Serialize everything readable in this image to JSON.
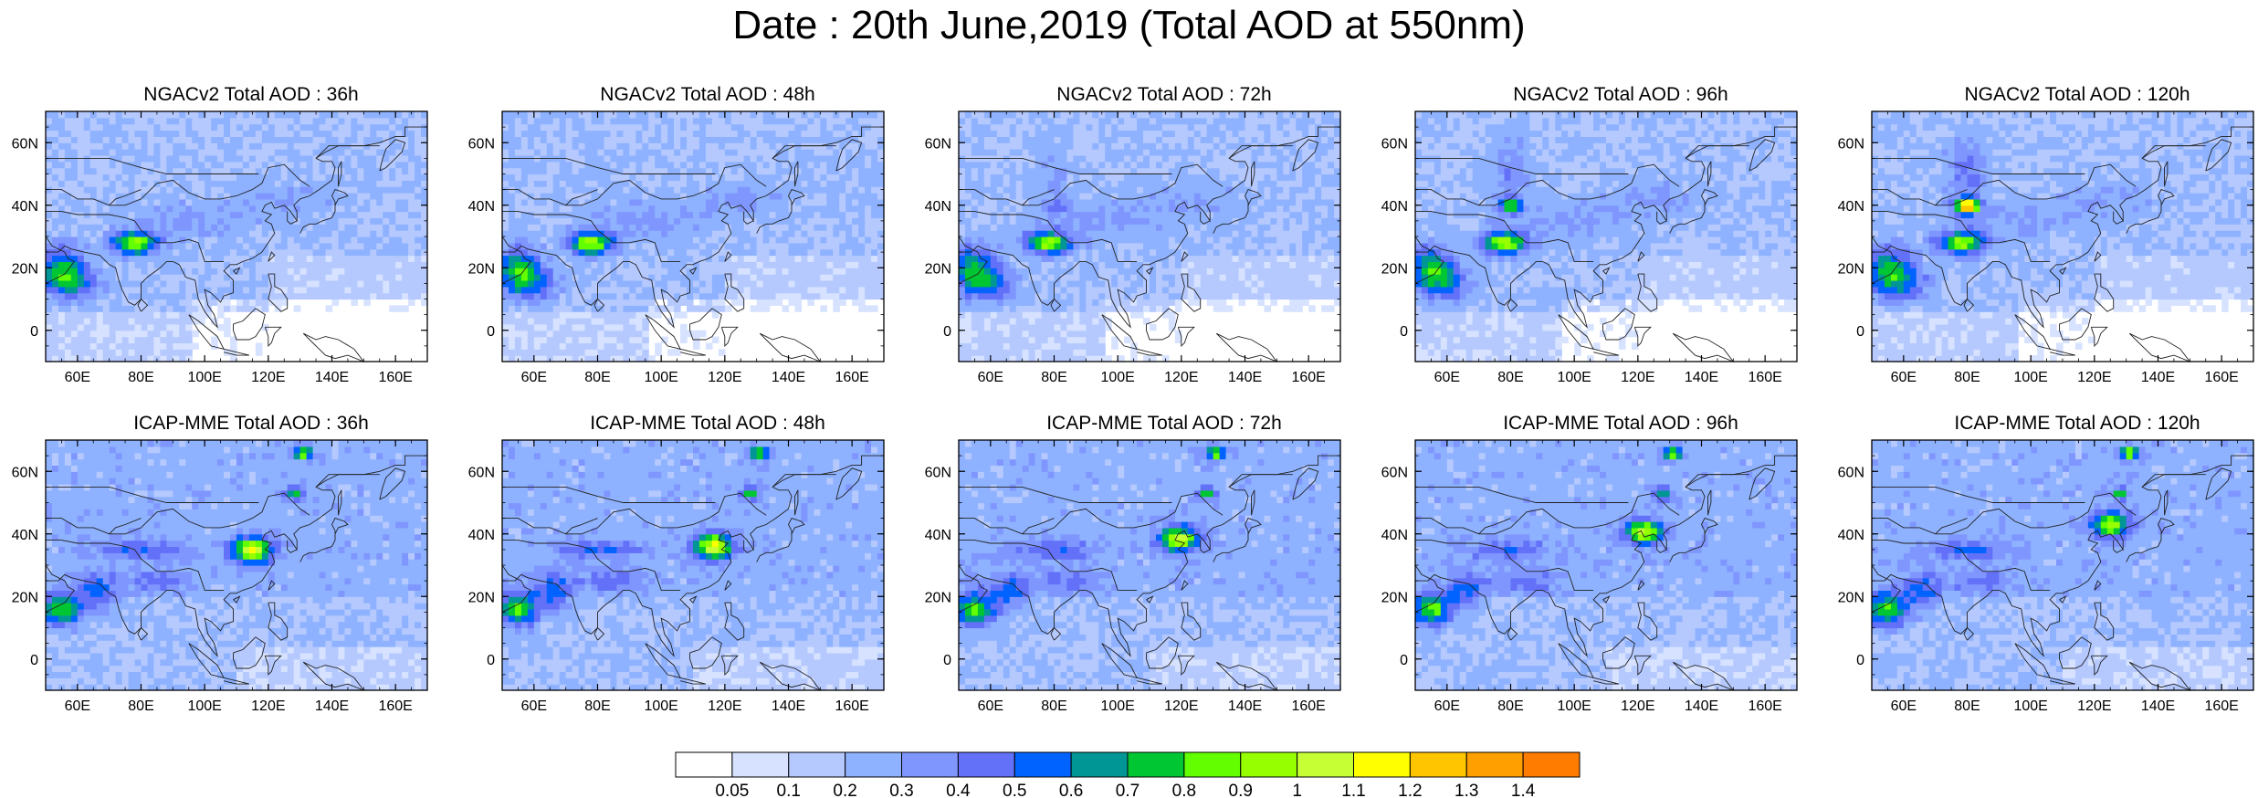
{
  "title": "Date : 20th June,2019 (Total AOD at 550nm)",
  "colors": {
    "levels": [
      "#ffffff",
      "#d6e2ff",
      "#b5c9ff",
      "#8eb2ff",
      "#7f96ff",
      "#6370f8",
      "#0063ff",
      "#009696",
      "#00c633",
      "#63ff00",
      "#96ff00",
      "#c6ff33",
      "#ffff00",
      "#ffc600",
      "#ffa000",
      "#ff7c00",
      "#ff1900"
    ],
    "coast": "#222222"
  },
  "colorbar": {
    "labels": [
      "0.05",
      "0.1",
      "0.2",
      "0.3",
      "0.4",
      "0.5",
      "0.6",
      "0.7",
      "0.8",
      "0.9",
      "1",
      "1.1",
      "1.2",
      "1.3",
      "1.4"
    ]
  },
  "axes": {
    "xticks": [
      "60E",
      "80E",
      "100E",
      "120E",
      "140E",
      "160E"
    ],
    "xtick_values": [
      60,
      80,
      100,
      120,
      140,
      160
    ],
    "yticks": [
      "60N",
      "40N",
      "20N",
      "0"
    ],
    "ytick_values": [
      60,
      40,
      20,
      0
    ],
    "lon_range": [
      50,
      170
    ],
    "lat_range": [
      -10,
      70
    ]
  },
  "panels": [
    {
      "id": "ngac-36",
      "title": "NGACv2 Total AOD : 36h",
      "model": "ngac",
      "lead": 36
    },
    {
      "id": "ngac-48",
      "title": "NGACv2 Total AOD : 48h",
      "model": "ngac",
      "lead": 48
    },
    {
      "id": "ngac-72",
      "title": "NGACv2 Total AOD : 72h",
      "model": "ngac",
      "lead": 72
    },
    {
      "id": "ngac-96",
      "title": "NGACv2 Total AOD : 96h",
      "model": "ngac",
      "lead": 96
    },
    {
      "id": "ngac-120",
      "title": "NGACv2 Total AOD : 120h",
      "model": "ngac",
      "lead": 120
    },
    {
      "id": "icap-36",
      "title": "ICAP-MME Total AOD : 36h",
      "model": "icap",
      "lead": 36
    },
    {
      "id": "icap-48",
      "title": "ICAP-MME Total AOD : 48h",
      "model": "icap",
      "lead": 48
    },
    {
      "id": "icap-72",
      "title": "ICAP-MME Total AOD : 72h",
      "model": "icap",
      "lead": 72
    },
    {
      "id": "icap-96",
      "title": "ICAP-MME Total AOD : 96h",
      "model": "icap",
      "lead": 96
    },
    {
      "id": "icap-120",
      "title": "ICAP-MME Total AOD : 120h",
      "model": "icap",
      "lead": 120
    }
  ]
}
